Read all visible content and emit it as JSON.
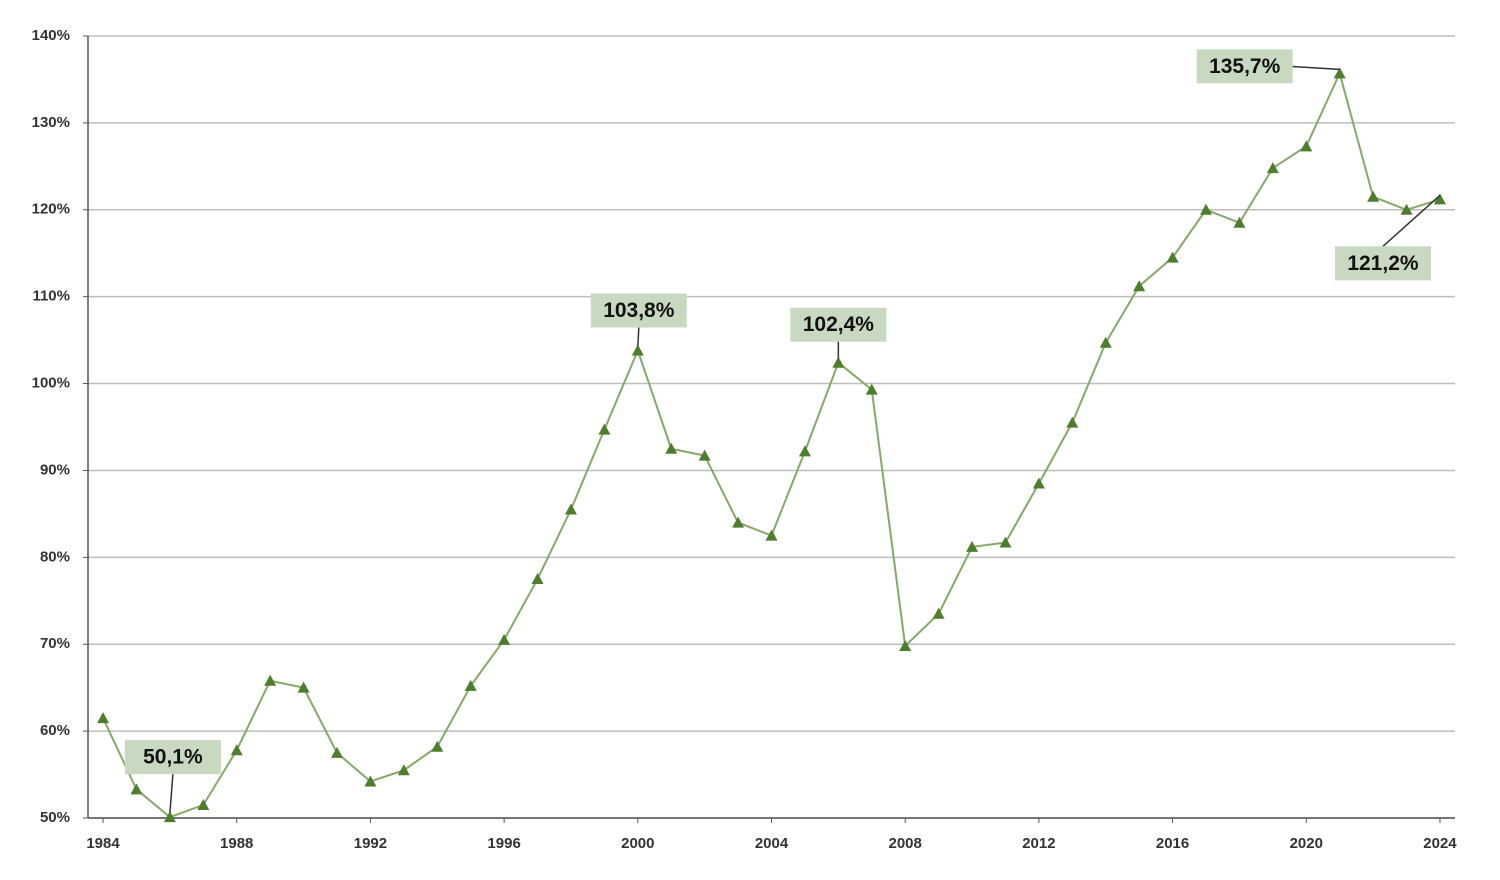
{
  "chart_data": {
    "type": "line",
    "x": [
      1984,
      1985,
      1986,
      1987,
      1988,
      1989,
      1990,
      1991,
      1992,
      1993,
      1994,
      1995,
      1996,
      1997,
      1998,
      1999,
      2000,
      2001,
      2002,
      2003,
      2004,
      2005,
      2006,
      2007,
      2008,
      2009,
      2010,
      2011,
      2012,
      2013,
      2014,
      2015,
      2016,
      2017,
      2018,
      2019,
      2020,
      2021,
      2022,
      2023,
      2024
    ],
    "values": [
      61.5,
      53.3,
      50.1,
      51.5,
      57.8,
      65.8,
      65.0,
      57.5,
      54.2,
      55.5,
      58.2,
      65.2,
      70.5,
      77.5,
      85.5,
      94.7,
      103.8,
      92.5,
      91.7,
      84.0,
      82.5,
      92.2,
      102.4,
      99.3,
      69.8,
      73.5,
      81.2,
      81.7,
      88.5,
      95.5,
      104.7,
      111.2,
      114.5,
      120.0,
      118.5,
      124.8,
      127.3,
      135.7,
      121.5,
      120.0,
      121.2
    ],
    "value_labels": [
      null,
      null,
      "50,1%",
      null,
      null,
      null,
      null,
      null,
      null,
      null,
      null,
      null,
      null,
      null,
      null,
      null,
      "103,8%",
      null,
      null,
      null,
      null,
      null,
      "102,4%",
      null,
      null,
      null,
      null,
      null,
      null,
      null,
      null,
      null,
      null,
      null,
      null,
      null,
      null,
      "135,7%",
      null,
      null,
      "121,2%"
    ],
    "color": "#86a86a",
    "marker_color": "#4e7d2e",
    "xlim": [
      1983.55,
      2024.45
    ],
    "xticks": [
      1984,
      1988,
      1992,
      1996,
      2000,
      2004,
      2008,
      2012,
      2016,
      2020,
      2024
    ],
    "ylim": [
      50,
      140
    ],
    "yticks": [
      {
        "value": 50,
        "label": "50%"
      },
      {
        "value": 60,
        "label": "60%"
      },
      {
        "value": 70,
        "label": "70%"
      },
      {
        "value": 80,
        "label": "80%"
      },
      {
        "value": 90,
        "label": "90%"
      },
      {
        "value": 100,
        "label": "100%"
      },
      {
        "value": 110,
        "label": "110%"
      },
      {
        "value": 120,
        "label": "120%"
      },
      {
        "value": 130,
        "label": "130%"
      },
      {
        "value": 140,
        "label": "140%"
      }
    ],
    "grid": true
  }
}
